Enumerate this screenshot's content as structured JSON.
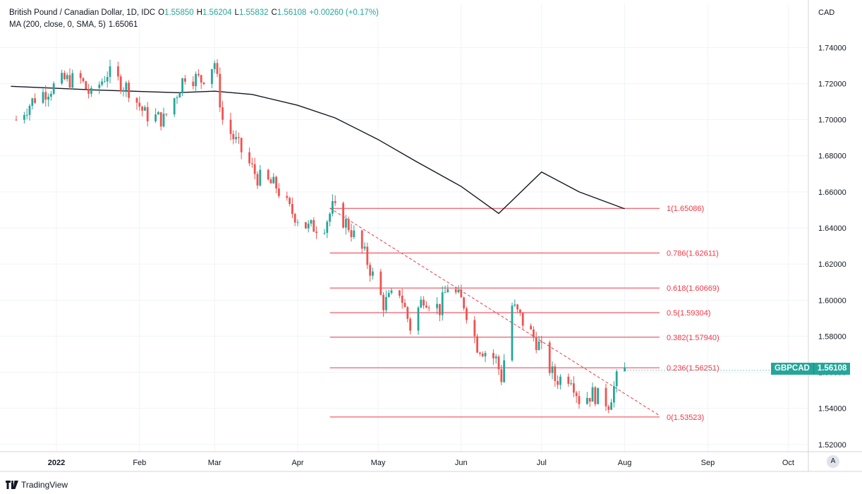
{
  "header": {
    "title": "British Pound / Canadian Dollar, 1D, IDC",
    "o_label": "O",
    "o_val": "1.55850",
    "h_label": "H",
    "h_val": "1.56204",
    "l_label": "L",
    "l_val": "1.55832",
    "c_label": "C",
    "c_val": "1.56108",
    "chg": "+0.00260 (+0.17%)",
    "ma_label": "MA (200, close, 0, SMA, 5)",
    "ma_val": "1.65061"
  },
  "badge": {
    "symbol": "GBPCAD",
    "price": "1.56108"
  },
  "auto_btn": "A",
  "brand": "TradingView",
  "colors": {
    "up": "#26a69a",
    "down": "#ef5350",
    "fib": "#f23645",
    "ma": "#131722",
    "grid": "#f0f3fa"
  },
  "chart_data": {
    "type": "candlestick",
    "currency": "CAD",
    "x_ticks": [
      "2022",
      "Feb",
      "Mar",
      "Apr",
      "May",
      "Jun",
      "Jul",
      "Aug",
      "Sep",
      "Oct"
    ],
    "x_tick_dates": [
      "2022-01-01",
      "2022-02-01",
      "2022-03-01",
      "2022-04-01",
      "2022-05-01",
      "2022-06-01",
      "2022-07-01",
      "2022-08-01",
      "2022-09-01",
      "2022-10-01"
    ],
    "y_ticks": [
      "1.52000",
      "1.54000",
      "1.56000",
      "1.58000",
      "1.60000",
      "1.62000",
      "1.64000",
      "1.66000",
      "1.68000",
      "1.70000",
      "1.72000",
      "1.74000"
    ],
    "ylim": [
      1.516,
      1.764
    ],
    "close_path": [
      [
        "2021-12-17",
        1.7
      ],
      [
        "2021-12-24",
        1.712
      ],
      [
        "2022-01-04",
        1.722
      ],
      [
        "2022-01-10",
        1.722
      ],
      [
        "2022-01-14",
        1.713
      ],
      [
        "2022-01-20",
        1.726
      ],
      [
        "2022-01-28",
        1.717
      ],
      [
        "2022-02-03",
        1.703
      ],
      [
        "2022-02-10",
        1.7
      ],
      [
        "2022-02-15",
        1.715
      ],
      [
        "2022-02-18",
        1.725
      ],
      [
        "2022-02-24",
        1.722
      ],
      [
        "2022-03-01",
        1.732
      ],
      [
        "2022-03-04",
        1.7
      ],
      [
        "2022-03-10",
        1.685
      ],
      [
        "2022-03-17",
        1.668
      ],
      [
        "2022-03-24",
        1.663
      ],
      [
        "2022-03-29",
        1.65
      ],
      [
        "2022-04-05",
        1.64
      ],
      [
        "2022-04-11",
        1.642
      ],
      [
        "2022-04-14",
        1.651
      ],
      [
        "2022-04-20",
        1.641
      ],
      [
        "2022-04-26",
        1.625
      ],
      [
        "2022-05-03",
        1.598
      ],
      [
        "2022-05-09",
        1.605
      ],
      [
        "2022-05-13",
        1.585
      ],
      [
        "2022-05-18",
        1.602
      ],
      [
        "2022-05-24",
        1.595
      ],
      [
        "2022-05-27",
        1.608
      ],
      [
        "2022-06-02",
        1.598
      ],
      [
        "2022-06-07",
        1.575
      ],
      [
        "2022-06-14",
        1.567
      ],
      [
        "2022-06-16",
        1.557
      ],
      [
        "2022-06-20",
        1.597
      ],
      [
        "2022-06-24",
        1.588
      ],
      [
        "2022-06-30",
        1.575
      ],
      [
        "2022-07-06",
        1.556
      ],
      [
        "2022-07-12",
        1.558
      ],
      [
        "2022-07-15",
        1.545
      ],
      [
        "2022-07-20",
        1.548
      ],
      [
        "2022-07-26",
        1.543
      ],
      [
        "2022-07-29",
        1.556
      ],
      [
        "2022-08-01",
        1.561
      ]
    ],
    "ma200": [
      [
        "2021-12-15",
        1.7185
      ],
      [
        "2022-01-15",
        1.7165
      ],
      [
        "2022-02-15",
        1.715
      ],
      [
        "2022-03-01",
        1.7158
      ],
      [
        "2022-03-15",
        1.714
      ],
      [
        "2022-04-01",
        1.708
      ],
      [
        "2022-04-15",
        1.701
      ],
      [
        "2022-05-01",
        1.689
      ],
      [
        "2022-05-15",
        1.677
      ],
      [
        "2022-06-01",
        1.663
      ],
      [
        "2022-06-15",
        1.648
      ],
      [
        "2022-07-01",
        1.671
      ],
      [
        "2022-07-15",
        1.66
      ],
      [
        "2022-08-01",
        1.6506
      ]
    ],
    "fib": {
      "start": "2022-04-13",
      "end": "2022-08-14",
      "levels": [
        {
          "ratio": "1",
          "price": 1.65086
        },
        {
          "ratio": "0.786",
          "price": 1.62611
        },
        {
          "ratio": "0.618",
          "price": 1.60669
        },
        {
          "ratio": "0.5",
          "price": 1.59304
        },
        {
          "ratio": "0.382",
          "price": 1.5794
        },
        {
          "ratio": "0.236",
          "price": 1.56251
        },
        {
          "ratio": "0",
          "price": 1.53523
        }
      ],
      "labels": [
        "1(1.65086)",
        "0.786(1.62611)",
        "0.618(1.60669)",
        "0.5(1.59304)",
        "0.382(1.57940)",
        "0.236(1.56251)",
        "0(1.53523)"
      ]
    },
    "trendline": [
      [
        "2022-04-13",
        1.651
      ],
      [
        "2022-08-14",
        1.536
      ]
    ]
  }
}
